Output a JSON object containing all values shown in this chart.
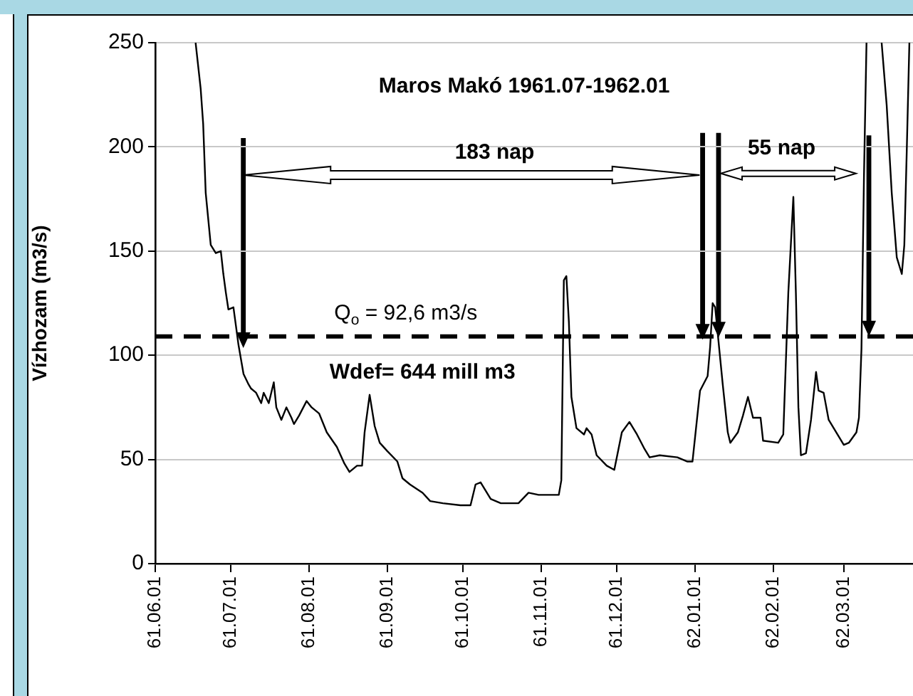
{
  "chart_data": {
    "type": "line",
    "title": "Maros Makó 1961.07-1962.01",
    "ylabel": "Vízhozam (m3/s)",
    "x": [
      "1961-06-17",
      "1961-06-19",
      "1961-06-20",
      "1961-06-21",
      "1961-06-23",
      "1961-06-25",
      "1961-06-27",
      "1961-06-28",
      "1961-06-29",
      "1961-06-30",
      "1961-07-02",
      "1961-07-03",
      "1961-07-04",
      "1961-07-06",
      "1961-07-08",
      "1961-07-09",
      "1961-07-11",
      "1961-07-13",
      "1961-07-14",
      "1961-07-16",
      "1961-07-18",
      "1961-07-19",
      "1961-07-21",
      "1961-07-23",
      "1961-07-25",
      "1961-07-26",
      "1961-07-28",
      "1961-07-31",
      "1961-08-02",
      "1961-08-05",
      "1961-08-08",
      "1961-08-12",
      "1961-08-15",
      "1961-08-17",
      "1961-08-20",
      "1961-08-22",
      "1961-08-23",
      "1961-08-25",
      "1961-08-27",
      "1961-08-29",
      "1961-09-01",
      "1961-09-05",
      "1961-09-07",
      "1961-09-10",
      "1961-09-15",
      "1961-09-18",
      "1961-09-23",
      "1961-09-30",
      "1961-10-04",
      "1961-10-06",
      "1961-10-08",
      "1961-10-12",
      "1961-10-16",
      "1961-10-23",
      "1961-10-27",
      "1961-10-31",
      "1961-11-05",
      "1961-11-08",
      "1961-11-09",
      "1961-11-10",
      "1961-11-11",
      "1961-11-12",
      "1961-11-13",
      "1961-11-15",
      "1961-11-18",
      "1961-11-19",
      "1961-11-21",
      "1961-11-23",
      "1961-11-27",
      "1961-11-30",
      "1961-12-03",
      "1961-12-06",
      "1961-12-09",
      "1961-12-12",
      "1961-12-14",
      "1961-12-18",
      "1961-12-25",
      "1961-12-29",
      "1961-12-31",
      "1962-01-03",
      "1962-01-06",
      "1962-01-07",
      "1962-01-08",
      "1962-01-09",
      "1962-01-12",
      "1962-01-14",
      "1962-01-15",
      "1962-01-18",
      "1962-01-20",
      "1962-01-22",
      "1962-01-24",
      "1962-01-27",
      "1962-01-28",
      "1962-02-03",
      "1962-02-05",
      "1962-02-07",
      "1962-02-09",
      "1962-02-10",
      "1962-02-11",
      "1962-02-12",
      "1962-02-14",
      "1962-02-16",
      "1962-02-18",
      "1962-02-19",
      "1962-02-21",
      "1962-02-23",
      "1962-02-27",
      "1962-03-01",
      "1962-03-03",
      "1962-03-06",
      "1962-03-07",
      "1962-03-08",
      "1962-03-09",
      "1962-03-10",
      "1962-03-13",
      "1962-03-16",
      "1962-03-18",
      "1962-03-20",
      "1962-03-22",
      "1962-03-24",
      "1962-03-25",
      "1962-03-26",
      "1962-03-27"
    ],
    "values": [
      250,
      228,
      211,
      178,
      153,
      149,
      150,
      139,
      130,
      122,
      123,
      114,
      105,
      91,
      86,
      84,
      82,
      77,
      82,
      77,
      87,
      75,
      69,
      75,
      70,
      67,
      71,
      78,
      75,
      72,
      63,
      56,
      48,
      44,
      47,
      47,
      63,
      81,
      66,
      58,
      54,
      49,
      41,
      38,
      34,
      30,
      29,
      28,
      28,
      38,
      39,
      31,
      29,
      29,
      34,
      33,
      33,
      33,
      40,
      136,
      138,
      116,
      80,
      65,
      62,
      65,
      62,
      52,
      47,
      45,
      63,
      68,
      62,
      55,
      51,
      52,
      51,
      49,
      49,
      83,
      90,
      104,
      125,
      123,
      86,
      63,
      58,
      63,
      71,
      80,
      70,
      70,
      59,
      58,
      62,
      130,
      176,
      130,
      75,
      52,
      53,
      69,
      92,
      83,
      82,
      69,
      61,
      57,
      58,
      63,
      70,
      103,
      186,
      250,
      null,
      250,
      220,
      178,
      147,
      139,
      153,
      200,
      250
    ],
    "color": "#000000",
    "xlim": [
      "1961-06-01",
      "1962-03-29"
    ],
    "xticks": [
      {
        "value": "1961-06-01",
        "label": "61.06.01"
      },
      {
        "value": "1961-07-01",
        "label": "61.07.01"
      },
      {
        "value": "1961-08-01",
        "label": "61.08.01"
      },
      {
        "value": "1961-09-01",
        "label": "61.09.01"
      },
      {
        "value": "1961-10-01",
        "label": "61.10.01"
      },
      {
        "value": "1961-11-01",
        "label": "61.11.01"
      },
      {
        "value": "1961-12-01",
        "label": "61.12.01"
      },
      {
        "value": "1962-01-01",
        "label": "62.01.01"
      },
      {
        "value": "1962-02-01",
        "label": "62.02.01"
      },
      {
        "value": "1962-03-01",
        "label": "62.03.01"
      }
    ],
    "ylim": [
      0,
      250
    ],
    "yticks": [
      0,
      50,
      100,
      150,
      200,
      250
    ],
    "grid": "y",
    "legend": false,
    "marker": "none",
    "line_style": "solid",
    "ref_lines": [
      {
        "axis": "y",
        "value": 109,
        "color": "#000000",
        "line_style": "dashed"
      }
    ],
    "annotations": [
      "Q$_{o}$ = 92,6 m3/s",
      "183 nap",
      "55 nap",
      "Wdef= 644 mill m3"
    ]
  }
}
